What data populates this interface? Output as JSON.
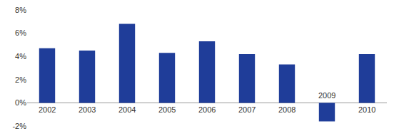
{
  "chart_data": {
    "type": "bar",
    "categories": [
      "2002",
      "2003",
      "2004",
      "2005",
      "2006",
      "2007",
      "2008",
      "2009",
      "2010"
    ],
    "values": [
      4.7,
      4.5,
      6.8,
      4.3,
      5.3,
      4.2,
      3.3,
      -1.6,
      4.2
    ],
    "color": "#1f3d99",
    "ylim": [
      -2,
      8
    ],
    "yticks": [
      {
        "value": -2,
        "label": "-2%"
      },
      {
        "value": 0,
        "label": "0%"
      },
      {
        "value": 2,
        "label": "2%"
      },
      {
        "value": 4,
        "label": "4%"
      },
      {
        "value": 6,
        "label": "6%"
      },
      {
        "value": 8,
        "label": "8%"
      }
    ],
    "grid": false
  }
}
